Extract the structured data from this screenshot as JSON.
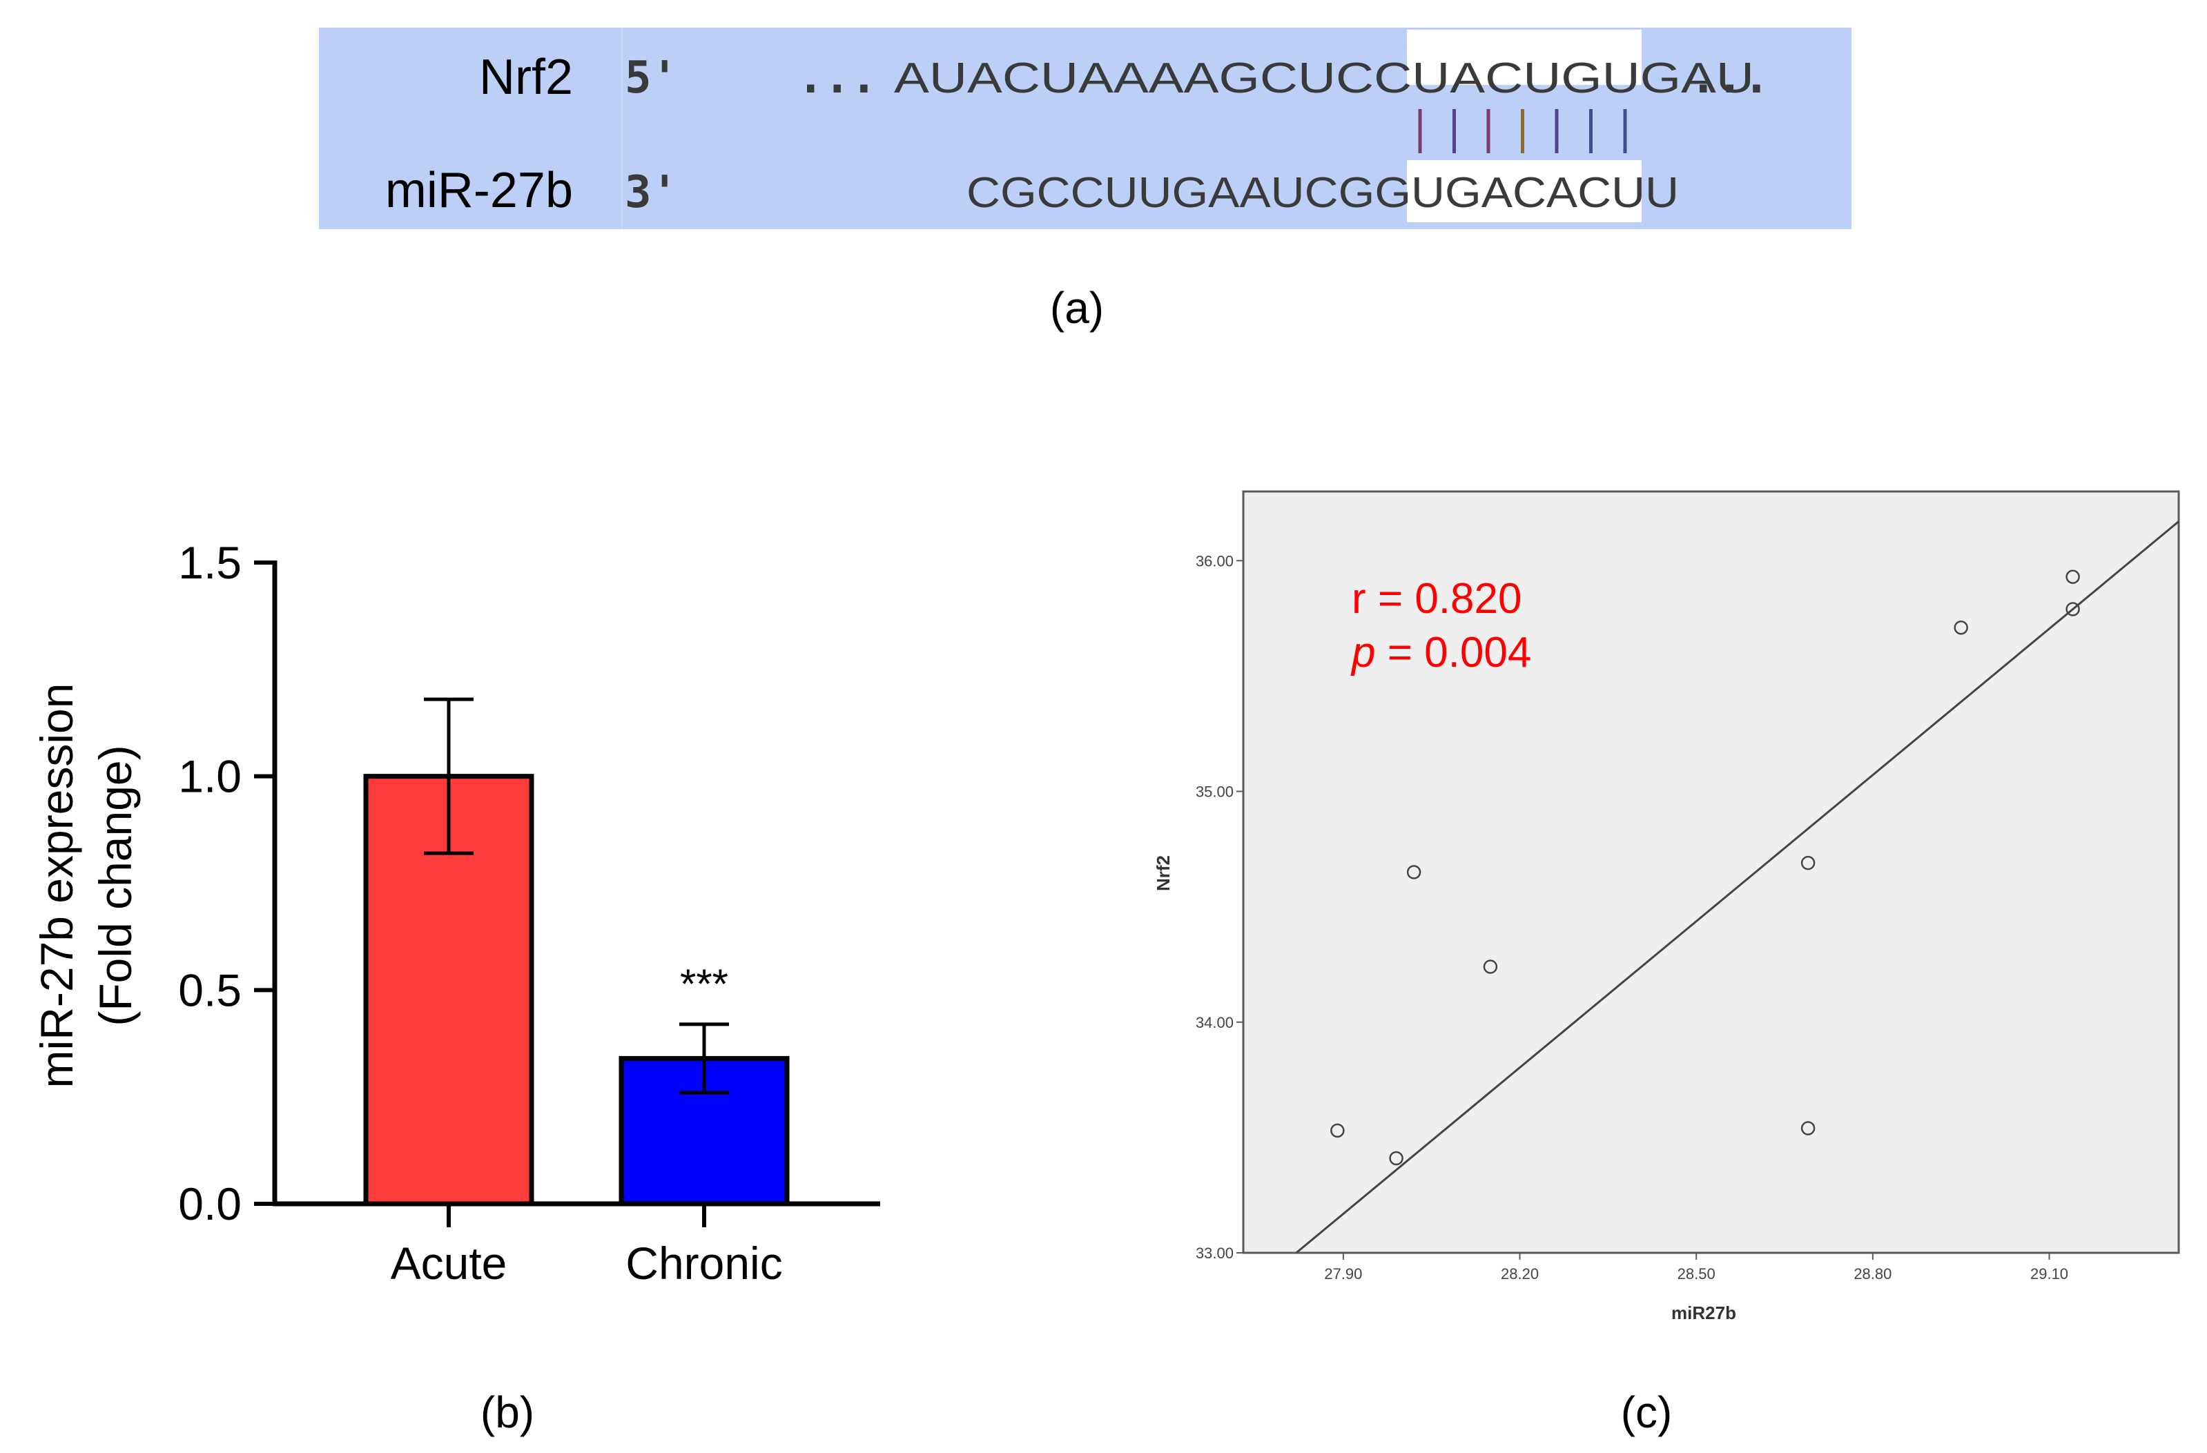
{
  "panel_a": {
    "label": "(a)",
    "rows": [
      {
        "name": "Nrf2",
        "end": "5'",
        "prefix": "...",
        "sequence": "AUACUAAAAGCUCCUACUGUGAU",
        "suffix": "..."
      },
      {
        "name": "miR-27b",
        "end": "3'",
        "prefix": "",
        "sequence": "CGCCUUGAAUCGGUGACACUU",
        "suffix": ""
      }
    ],
    "seed_pairs": 7,
    "colors": {
      "background": "#bcd0f7",
      "highlight": "#ffffff"
    }
  },
  "chart_data": [
    {
      "type": "bar",
      "panel_label": "(b)",
      "categories": [
        "Acute",
        "Chronic"
      ],
      "values": [
        1.0,
        0.34
      ],
      "error": [
        0.18,
        0.08
      ],
      "colors": [
        "#ff3b3b",
        "#0000ff"
      ],
      "annotations": [
        "",
        "***"
      ],
      "ylabel": [
        "miR-27b expression",
        "(Fold change)"
      ],
      "ylim": [
        0,
        1.5
      ],
      "yticks": [
        "0.0",
        "0.5",
        "1.0",
        "1.5"
      ],
      "ytick_values": [
        0,
        0.5,
        1.0,
        1.5
      ]
    },
    {
      "type": "scatter",
      "panel_label": "(c)",
      "xlabel": "miR27b",
      "ylabel": "Nrf2",
      "xlim": [
        27.73,
        29.32
      ],
      "ylim": [
        33.0,
        36.3
      ],
      "xticks": [
        "27.90",
        "28.20",
        "28.50",
        "28.80",
        "29.10"
      ],
      "xtick_values": [
        27.9,
        28.2,
        28.5,
        28.8,
        29.1
      ],
      "yticks": [
        "33.00",
        "34.00",
        "35.00",
        "36.00"
      ],
      "ytick_values": [
        33.0,
        34.0,
        35.0,
        36.0
      ],
      "points": [
        {
          "x": 27.89,
          "y": 33.53
        },
        {
          "x": 27.99,
          "y": 33.41
        },
        {
          "x": 28.02,
          "y": 34.65
        },
        {
          "x": 28.15,
          "y": 34.24
        },
        {
          "x": 28.69,
          "y": 34.69
        },
        {
          "x": 28.69,
          "y": 33.54
        },
        {
          "x": 28.95,
          "y": 35.71
        },
        {
          "x": 29.14,
          "y": 35.93
        },
        {
          "x": 29.14,
          "y": 35.79
        }
      ],
      "fit_line": {
        "x": [
          27.82,
          29.32
        ],
        "y": [
          33.0,
          36.17
        ]
      },
      "annotations": [
        {
          "prefix": "r",
          "text": " = 0.820"
        },
        {
          "prefix": "p",
          "text": " = 0.004"
        }
      ],
      "colors": {
        "plot_bg": "#efefef",
        "annotation": "#ff0000"
      },
      "grid": false
    }
  ]
}
